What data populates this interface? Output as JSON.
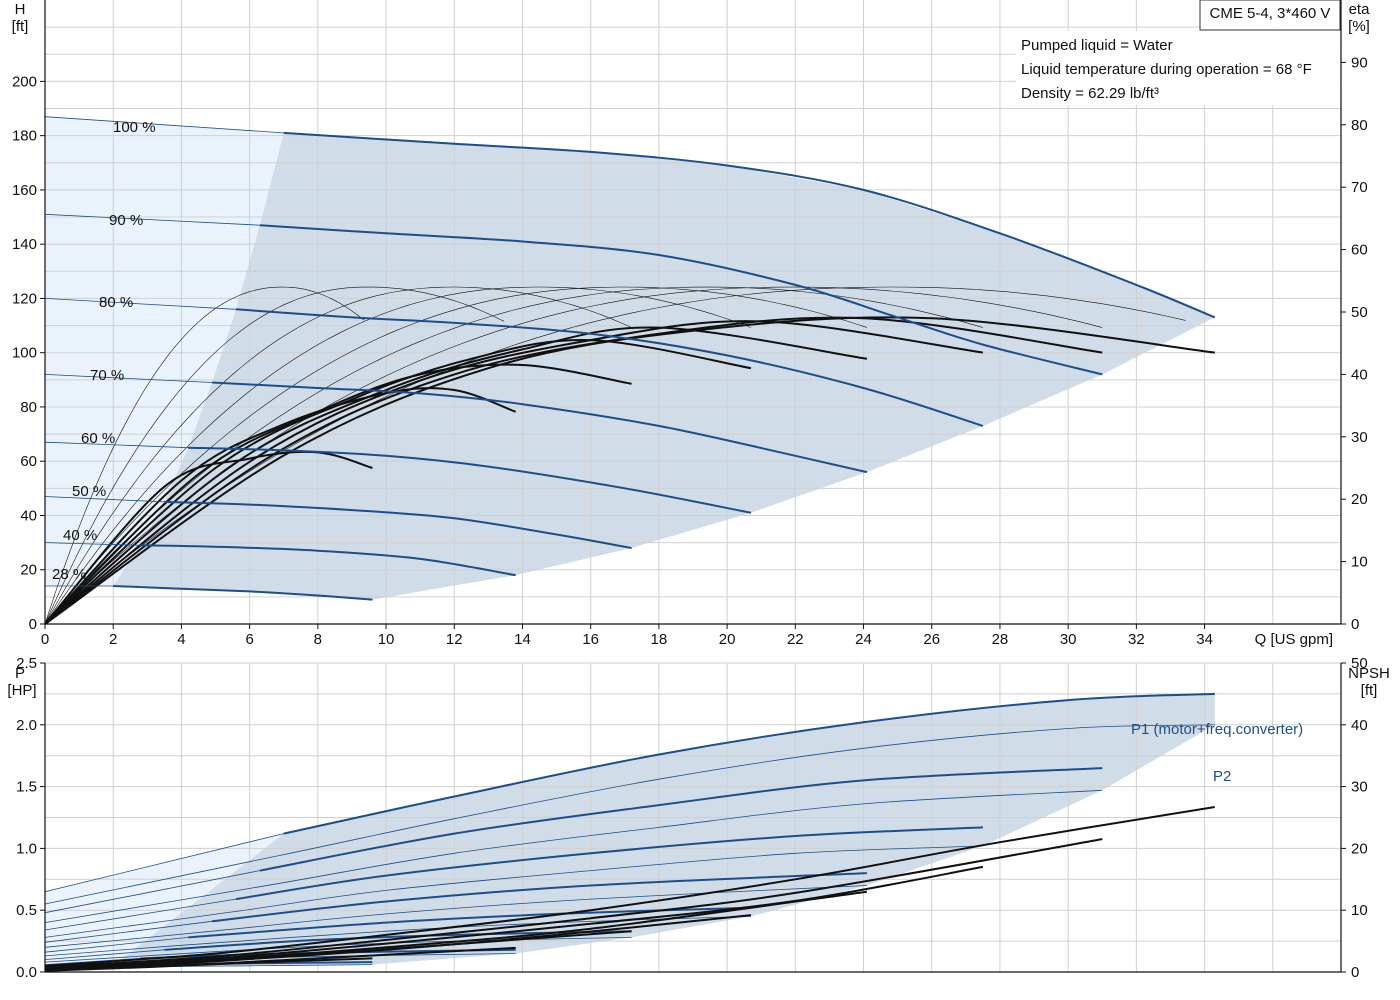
{
  "colors": {
    "grid": "#d0d0d0",
    "blue": "#1d4e89",
    "black": "#111111",
    "region_dark": "#d0dce8",
    "region_light": "#eaf3fb"
  },
  "top_panel": {
    "y_left_title_1": "H",
    "y_left_title_2": "[ft]",
    "y_right_title_1": "eta",
    "y_right_title_2": "[%]",
    "x_title": "Q [US gpm]",
    "model_label": "CME 5-4, 3*460 V",
    "info_lines": [
      "Pumped liquid = Water",
      "Liquid temperature during operation = 68 °F",
      "Density = 62.29 lb/ft³"
    ],
    "speed_labels": [
      "100 %",
      "90 %",
      "80 %",
      "70 %",
      "60 %",
      "50 %",
      "40 %",
      "28 %"
    ]
  },
  "bottom_panel": {
    "y_left_title_1": "P",
    "y_left_title_2": "[HP]",
    "y_right_title_1": "NPSH",
    "y_right_title_2": "[ft]",
    "p1_label": "P1 (motor+freq.converter)",
    "p2_label": "P2"
  },
  "chart_data": [
    {
      "type": "line",
      "title": "",
      "xlabel": "Q [US gpm]",
      "ylabel": "H [ft]",
      "y2label": "eta [%]",
      "xlim": [
        0,
        38
      ],
      "ylim": [
        0,
        230
      ],
      "y2lim": [
        0,
        100
      ],
      "x_ticks": [
        0,
        2,
        4,
        6,
        8,
        10,
        12,
        14,
        16,
        18,
        20,
        22,
        24,
        26,
        28,
        30,
        32,
        34
      ],
      "y_ticks": [
        0,
        20,
        40,
        60,
        80,
        100,
        120,
        140,
        160,
        180,
        200
      ],
      "y2_ticks": [
        0,
        10,
        20,
        30,
        40,
        50,
        60,
        70,
        80,
        90
      ],
      "grid": true,
      "series": [
        {
          "name": "100 %",
          "kind": "head",
          "x": [
            0,
            7,
            12,
            16,
            20,
            24,
            28,
            32,
            34.3
          ],
          "values": [
            187,
            181,
            177,
            174,
            169,
            160,
            144,
            125,
            113
          ]
        },
        {
          "name": "90 %",
          "kind": "head",
          "x": [
            0,
            6.3,
            10,
            14,
            18,
            22,
            25,
            27.5,
            31
          ],
          "values": [
            151,
            147,
            144,
            141,
            136,
            125,
            113,
            103,
            92
          ]
        },
        {
          "name": "80 %",
          "kind": "head",
          "x": [
            0,
            5.6,
            9,
            12,
            16,
            20,
            24,
            27.5
          ],
          "values": [
            120,
            116,
            113,
            111,
            107,
            99,
            87,
            73
          ]
        },
        {
          "name": "70 %",
          "kind": "head",
          "x": [
            0,
            4.9,
            8,
            11,
            14,
            18,
            22,
            24.1
          ],
          "values": [
            92,
            89,
            87,
            85,
            81,
            73,
            62,
            56
          ]
        },
        {
          "name": "60 %",
          "kind": "head",
          "x": [
            0,
            4.2,
            7,
            10,
            13,
            17,
            20.7
          ],
          "values": [
            67,
            65,
            64,
            62,
            58,
            50,
            41
          ]
        },
        {
          "name": "50 %",
          "kind": "head",
          "x": [
            0,
            3.5,
            6,
            9,
            12,
            15,
            17.2
          ],
          "values": [
            47,
            45,
            44,
            42,
            39,
            33,
            28
          ]
        },
        {
          "name": "40 %",
          "kind": "head",
          "x": [
            0,
            2.8,
            5,
            8,
            11,
            13.8
          ],
          "values": [
            30,
            29,
            28.5,
            27,
            24,
            18
          ]
        },
        {
          "name": "28 %",
          "kind": "head",
          "x": [
            0,
            2,
            4,
            6,
            8,
            9.6
          ],
          "values": [
            14,
            14,
            13,
            12,
            10.5,
            9
          ]
        }
      ],
      "efficiency": [
        {
          "x": [
            0,
            3.5,
            6,
            8,
            9.6
          ],
          "values": [
            0,
            22,
            26.5,
            27.5,
            25
          ]
        },
        {
          "x": [
            0,
            4,
            7,
            10,
            12,
            13.8
          ],
          "values": [
            0,
            23,
            32,
            37,
            37.5,
            34
          ]
        },
        {
          "x": [
            0,
            4.5,
            8,
            11,
            14,
            17.2
          ],
          "values": [
            0,
            24,
            34,
            40,
            41.5,
            38.5
          ]
        },
        {
          "x": [
            0,
            5,
            9,
            12.5,
            16,
            20.7
          ],
          "values": [
            0,
            25,
            36,
            42.5,
            45.5,
            41
          ]
        },
        {
          "x": [
            0,
            5.5,
            10,
            14,
            18,
            24.1
          ],
          "values": [
            0,
            25.5,
            37.5,
            44,
            47.5,
            42.5
          ]
        },
        {
          "x": [
            0,
            6,
            11,
            16,
            21,
            27.5
          ],
          "values": [
            0,
            26,
            39,
            45.5,
            48.5,
            43.5
          ]
        },
        {
          "x": [
            0,
            6.5,
            12,
            18,
            24,
            31
          ],
          "values": [
            0,
            26.5,
            40,
            46.5,
            49,
            43.5
          ]
        },
        {
          "x": [
            0,
            7,
            13,
            19,
            26,
            34.3
          ],
          "values": [
            0,
            27,
            41,
            47,
            49,
            43.5
          ]
        }
      ],
      "iso_efficiency": {
        "x_max": [
          9.6,
          13.8,
          17.2,
          20.7,
          24.1,
          27.5,
          31,
          34.3
        ],
        "peak_x": [
          7,
          9.5,
          12,
          14.5,
          17,
          19.5,
          22,
          25
        ],
        "peak_eta": [
          54,
          54,
          54,
          54,
          54,
          54,
          54,
          54
        ]
      }
    },
    {
      "type": "line",
      "title": "",
      "xlabel": "Q [US gpm]",
      "ylabel": "P [HP]",
      "y2label": "NPSH [ft]",
      "xlim": [
        0,
        38
      ],
      "ylim": [
        0,
        2.5
      ],
      "y2lim": [
        0,
        50
      ],
      "y_ticks": [
        0.0,
        0.5,
        1.0,
        1.5,
        2.0,
        2.5
      ],
      "y2_ticks": [
        0,
        10,
        20,
        30,
        40,
        50
      ],
      "grid": true,
      "p1": [
        {
          "x": [
            0,
            7,
            12,
            18,
            24,
            30,
            34.3
          ],
          "values": [
            0.65,
            1.12,
            1.42,
            1.76,
            2.02,
            2.2,
            2.25
          ]
        },
        {
          "x": [
            0,
            6.3,
            12,
            18,
            24,
            31
          ],
          "values": [
            0.48,
            0.82,
            1.12,
            1.35,
            1.55,
            1.65
          ]
        },
        {
          "x": [
            0,
            5.6,
            10,
            16,
            22,
            27.5
          ],
          "values": [
            0.34,
            0.59,
            0.78,
            0.96,
            1.1,
            1.17
          ]
        },
        {
          "x": [
            0,
            4.9,
            10,
            16,
            24.1
          ],
          "values": [
            0.24,
            0.41,
            0.57,
            0.7,
            0.8
          ]
        },
        {
          "x": [
            0,
            4.2,
            10,
            15,
            20.7
          ],
          "values": [
            0.16,
            0.28,
            0.4,
            0.47,
            0.52
          ]
        },
        {
          "x": [
            0,
            3.5,
            8,
            12,
            17.2
          ],
          "values": [
            0.1,
            0.18,
            0.26,
            0.3,
            0.33
          ]
        },
        {
          "x": [
            0,
            2.8,
            7,
            13.8
          ],
          "values": [
            0.06,
            0.11,
            0.15,
            0.18
          ]
        },
        {
          "x": [
            0,
            2,
            6,
            9.6
          ],
          "values": [
            0.03,
            0.05,
            0.07,
            0.08
          ]
        }
      ],
      "p2": [
        {
          "x": [
            0,
            7,
            12,
            18,
            24,
            30,
            34.3
          ],
          "values": [
            0.55,
            0.95,
            1.24,
            1.56,
            1.81,
            1.97,
            2.0
          ]
        },
        {
          "x": [
            0,
            6.3,
            12,
            18,
            24,
            31
          ],
          "values": [
            0.4,
            0.69,
            0.96,
            1.17,
            1.36,
            1.47
          ]
        },
        {
          "x": [
            0,
            5.6,
            10,
            16,
            22,
            27.5
          ],
          "values": [
            0.28,
            0.49,
            0.66,
            0.82,
            0.96,
            1.02
          ]
        },
        {
          "x": [
            0,
            4.9,
            10,
            16,
            24.1
          ],
          "values": [
            0.2,
            0.33,
            0.47,
            0.59,
            0.7
          ]
        },
        {
          "x": [
            0,
            4.2,
            10,
            15,
            20.7
          ],
          "values": [
            0.13,
            0.22,
            0.33,
            0.4,
            0.45
          ]
        },
        {
          "x": [
            0,
            3.5,
            8,
            12,
            17.2
          ],
          "values": [
            0.08,
            0.14,
            0.21,
            0.25,
            0.28
          ]
        },
        {
          "x": [
            0,
            2.8,
            7,
            13.8
          ],
          "values": [
            0.05,
            0.08,
            0.12,
            0.15
          ]
        },
        {
          "x": [
            0,
            2,
            6,
            9.6
          ],
          "values": [
            0.02,
            0.04,
            0.05,
            0.06
          ]
        }
      ],
      "npsh": [
        {
          "x": [
            0,
            5,
            10,
            16,
            22,
            28,
            34.3
          ],
          "values": [
            1,
            3,
            6,
            10,
            15,
            21,
            26.7
          ]
        },
        {
          "x": [
            0,
            5,
            10,
            16,
            22,
            31
          ],
          "values": [
            0.8,
            2.5,
            5.2,
            8.7,
            12.8,
            21.5
          ]
        },
        {
          "x": [
            0,
            5,
            10,
            16,
            22,
            27.5
          ],
          "values": [
            0.7,
            2.2,
            4.6,
            7.8,
            11.5,
            17
          ]
        },
        {
          "x": [
            0,
            5,
            10,
            16,
            24.1
          ],
          "values": [
            0.6,
            2,
            4,
            7,
            13
          ]
        },
        {
          "x": [
            0,
            5,
            10,
            15,
            20.7
          ],
          "values": [
            0.5,
            1.8,
            3.6,
            6,
            9.2
          ]
        },
        {
          "x": [
            0,
            4,
            8,
            12,
            17.2
          ],
          "values": [
            0.4,
            1.4,
            2.9,
            4.5,
            6.6
          ]
        },
        {
          "x": [
            0,
            4,
            8,
            13.8
          ],
          "values": [
            0.3,
            1.1,
            2.2,
            3.9
          ]
        },
        {
          "x": [
            0,
            3,
            6,
            9.6
          ],
          "values": [
            0.2,
            0.8,
            1.5,
            2.2
          ]
        }
      ]
    }
  ]
}
